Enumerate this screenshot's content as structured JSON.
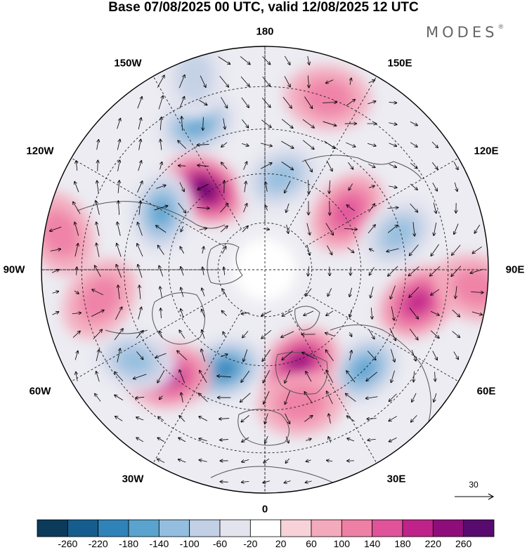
{
  "title": "Base 07/08/2025 00 UTC, valid 12/08/2025 12 UTC",
  "brand": "MODES",
  "brand_mark": "®",
  "longitude_labels": {
    "n180": "180",
    "w150": "150W",
    "e150": "150E",
    "w120": "120W",
    "e120": "120E",
    "w90": "90W",
    "e90": "90E",
    "w60": "60W",
    "e60": "60E",
    "w30": "30W",
    "e30": "30E",
    "s0": "0"
  },
  "vector_scale": {
    "label": "30",
    "value": 30
  },
  "colorbar": {
    "ticks": [
      "-260",
      "-220",
      "-180",
      "-140",
      "-100",
      "-60",
      "-20",
      "20",
      "60",
      "100",
      "140",
      "180",
      "220",
      "260"
    ],
    "colors": [
      "#0b3a5a",
      "#155d8e",
      "#2f83b9",
      "#5aa3cf",
      "#93bedf",
      "#c2d0e6",
      "#e4e4ef",
      "#ffffff",
      "#f7d3d9",
      "#f4aabd",
      "#ee7fa5",
      "#e0539a",
      "#bf2389",
      "#8e0d7b",
      "#580a6e"
    ]
  },
  "anomalies": [
    {
      "lon": -155,
      "r": 0.72,
      "value": -150
    },
    {
      "lon": -143,
      "r": 0.45,
      "value": 230
    },
    {
      "lon": -119,
      "r": 0.53,
      "value": -170
    },
    {
      "lon": 170,
      "r": 0.42,
      "value": -130
    },
    {
      "lon": 125,
      "r": 0.45,
      "value": 110
    },
    {
      "lon": 105,
      "r": 0.62,
      "value": -100
    },
    {
      "lon": 78,
      "r": 0.7,
      "value": 160
    },
    {
      "lon": 45,
      "r": 0.63,
      "value": -170
    },
    {
      "lon": 20,
      "r": 0.45,
      "value": 180
    },
    {
      "lon": 15,
      "r": 0.62,
      "value": 80
    },
    {
      "lon": -22,
      "r": 0.48,
      "value": -200
    },
    {
      "lon": -42,
      "r": 0.64,
      "value": 150
    },
    {
      "lon": -55,
      "r": 0.71,
      "value": -130
    },
    {
      "lon": -160,
      "r": 0.92,
      "value": -60
    },
    {
      "lon": 160,
      "r": 0.82,
      "value": 70
    },
    {
      "lon": -100,
      "r": 0.93,
      "value": 70
    },
    {
      "lon": -80,
      "r": 0.75,
      "value": 60
    },
    {
      "lon": 85,
      "r": 0.95,
      "value": 60
    }
  ]
}
